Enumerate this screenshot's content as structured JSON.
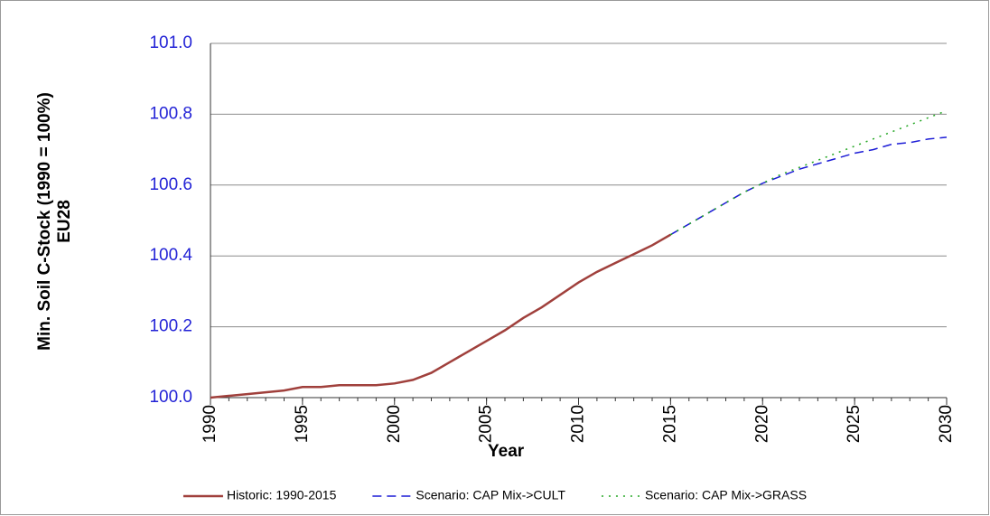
{
  "chart_data": {
    "type": "line",
    "xlabel": "Year",
    "ylabel": [
      "Min. Soil C-Stock (1990 = 100%)",
      "EU28"
    ],
    "x": [
      1990,
      1991,
      1992,
      1993,
      1994,
      1995,
      1996,
      1997,
      1998,
      1999,
      2000,
      2001,
      2002,
      2003,
      2004,
      2005,
      2006,
      2007,
      2008,
      2009,
      2010,
      2011,
      2012,
      2013,
      2014,
      2015,
      2016,
      2017,
      2018,
      2019,
      2020,
      2021,
      2022,
      2023,
      2024,
      2025,
      2026,
      2027,
      2028,
      2029,
      2030
    ],
    "xlim": [
      1990,
      2030
    ],
    "xticks": [
      1990,
      1995,
      2000,
      2005,
      2010,
      2015,
      2020,
      2025,
      2030
    ],
    "ylim": [
      100,
      101
    ],
    "yticks": [
      {
        "value": 100,
        "label": "100.0"
      },
      100.2,
      100.4,
      100.6,
      100.8,
      {
        "value": 101,
        "label": "101.0"
      }
    ],
    "grid": true,
    "legend": "bottom",
    "series": [
      {
        "name": "Historic: 1990-2015",
        "color": "#a0403c",
        "style": "solid",
        "values": [
          100,
          100.005,
          100.01,
          100.015,
          100.02,
          100.03,
          100.03,
          100.035,
          100.035,
          100.035,
          100.04,
          100.05,
          100.07,
          100.1,
          100.13,
          100.16,
          100.19,
          100.225,
          100.255,
          100.29,
          100.325,
          100.355,
          100.38,
          100.405,
          100.43,
          100.46,
          null,
          null,
          null,
          null,
          null,
          null,
          null,
          null,
          null,
          null,
          null,
          null,
          null,
          null,
          null
        ]
      },
      {
        "name": "Scenario: CAP Mix->CULT",
        "color": "#1c1cd6",
        "style": "dashed",
        "values": [
          null,
          null,
          null,
          null,
          null,
          null,
          null,
          null,
          null,
          null,
          null,
          null,
          null,
          null,
          null,
          null,
          null,
          null,
          null,
          null,
          null,
          null,
          null,
          null,
          null,
          100.46,
          100.49,
          100.52,
          100.55,
          100.58,
          100.605,
          100.625,
          100.645,
          100.66,
          100.675,
          100.69,
          100.7,
          100.715,
          100.72,
          100.73,
          100.735
        ]
      },
      {
        "name": "Scenario: CAP Mix->GRASS",
        "color": "#22a622",
        "style": "dotted",
        "values": [
          null,
          null,
          null,
          null,
          null,
          null,
          null,
          null,
          null,
          null,
          null,
          null,
          null,
          null,
          null,
          null,
          null,
          null,
          null,
          null,
          null,
          null,
          null,
          null,
          null,
          100.46,
          100.49,
          100.52,
          100.55,
          100.58,
          100.605,
          100.63,
          100.65,
          100.67,
          100.69,
          100.71,
          100.73,
          100.75,
          100.77,
          100.79,
          100.81
        ]
      }
    ]
  }
}
